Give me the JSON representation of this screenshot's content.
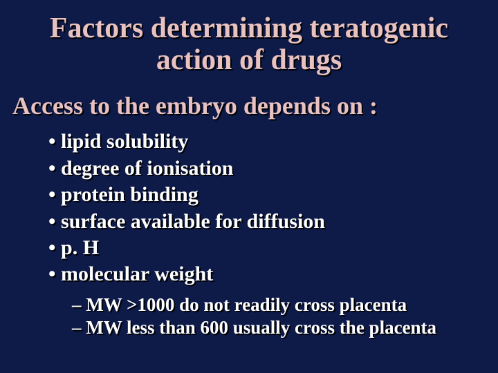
{
  "slide": {
    "title": "Factors determining teratogenic action of drugs",
    "title_fontsize": 42,
    "title_color": "#e8c1c1",
    "subtitle": "Access to the embryo depends on :",
    "subtitle_fontsize": 36,
    "subtitle_color": "#e8c1c1",
    "bullets": [
      "lipid solubility",
      "degree of ionisation",
      "protein binding",
      "surface available for diffusion",
      "p. H",
      "molecular weight"
    ],
    "bullet_fontsize": 30,
    "bullet_color": "#ffffff",
    "sub_bullets": [
      "MW >1000  do not readily cross placenta",
      "MW less than 600 usually cross the placenta"
    ],
    "sub_bullet_fontsize": 27,
    "sub_bullet_color": "#ffffff",
    "background_color": "#0e1a48",
    "shadow_color": "#000000",
    "font_family": "Times New Roman"
  }
}
